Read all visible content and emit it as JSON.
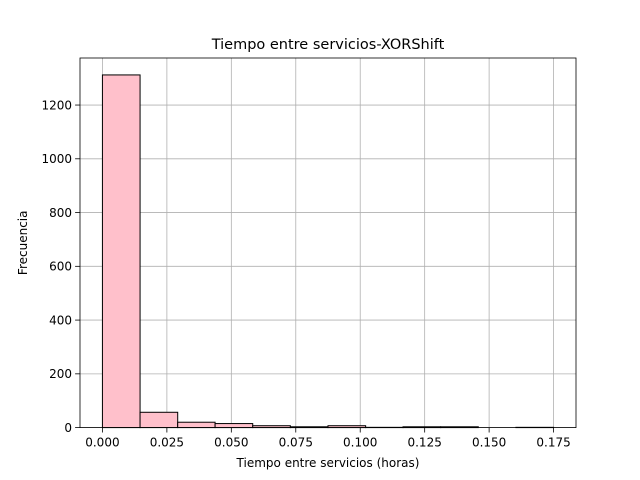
{
  "chart_data": {
    "type": "bar",
    "title": "Tiempo entre servicios-XORShift",
    "xlabel": "Tiempo entre servicios (horas)",
    "ylabel": "Frecuencia",
    "xlim": [
      -0.0087,
      0.1837
    ],
    "ylim": [
      0,
      1375
    ],
    "xticks": [
      0.0,
      0.025,
      0.05,
      0.075,
      0.1,
      0.125,
      0.15,
      0.175
    ],
    "xtick_labels": [
      "0.000",
      "0.025",
      "0.050",
      "0.075",
      "0.100",
      "0.125",
      "0.150",
      "0.175"
    ],
    "yticks": [
      0,
      200,
      400,
      600,
      800,
      1000,
      1200
    ],
    "ytick_labels": [
      "0",
      "200",
      "400",
      "600",
      "800",
      "1000",
      "1200"
    ],
    "grid": true,
    "bin_edges": [
      0.0,
      0.0146,
      0.0292,
      0.0437,
      0.0583,
      0.0729,
      0.0875,
      0.1021,
      0.1166,
      0.1312,
      0.1458,
      0.1604,
      0.175
    ],
    "values": [
      1312,
      57,
      20,
      15,
      7,
      3,
      7,
      1,
      3,
      3,
      0,
      1
    ],
    "colors": {
      "bar_fill": "#ffc0cb",
      "bar_edge": "#000000",
      "grid": "#b0b0b0",
      "axis": "#000000"
    }
  }
}
